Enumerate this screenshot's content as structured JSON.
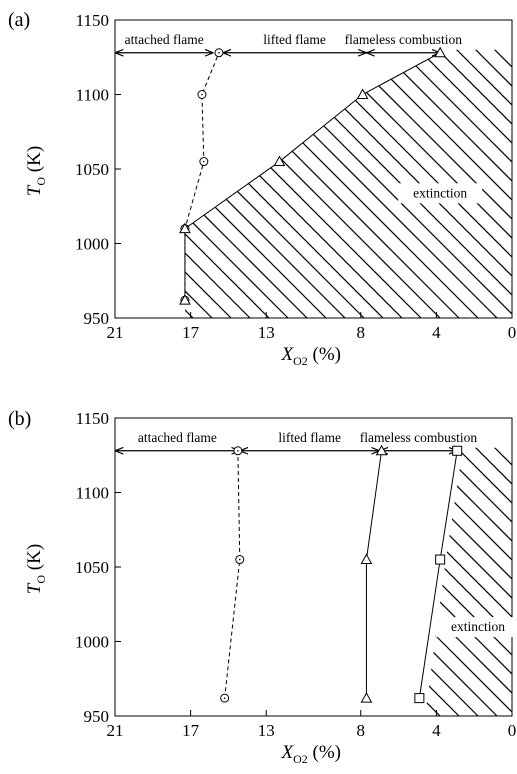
{
  "chart_data": [
    {
      "panel": "(a)",
      "type": "line",
      "xlabel": "X",
      "xlabel_sub": "O2",
      "xlabel_unit": " (%)",
      "ylabel": "T",
      "ylabel_sub": "O",
      "ylabel_unit": " (K)",
      "xlim": [
        21,
        0
      ],
      "ylim": [
        950,
        1150
      ],
      "xticks": [
        21,
        17,
        13,
        8,
        4,
        0
      ],
      "yticks": [
        950,
        1000,
        1050,
        1100,
        1150
      ],
      "grid": false,
      "series": [
        {
          "style": "dashed",
          "marker": "circle",
          "points": [
            [
              17.3,
              962
            ],
            [
              17.3,
              1010
            ],
            [
              16.3,
              1055
            ],
            [
              16.4,
              1100
            ],
            [
              15.5,
              1128
            ]
          ]
        },
        {
          "style": "solid",
          "marker": "triangle",
          "points": [
            [
              17.3,
              962
            ],
            [
              17.3,
              1010
            ],
            [
              12.3,
              1055
            ],
            [
              7.9,
              1100
            ],
            [
              3.8,
              1128
            ]
          ]
        }
      ],
      "hatch_region": [
        [
          17.3,
          950
        ],
        [
          17.3,
          1010
        ],
        [
          12.3,
          1055
        ],
        [
          7.9,
          1100
        ],
        [
          3.8,
          1128
        ],
        [
          3.5,
          1130
        ],
        [
          0,
          1130
        ],
        [
          0,
          950
        ]
      ],
      "regions": [
        {
          "label": "attached flame",
          "x_from": 21,
          "x_to": 15.8
        },
        {
          "label": "lifted flame",
          "x_from": 15.3,
          "x_to": 7.7
        },
        {
          "label": "flameless combustion",
          "x_from": 7.7,
          "x_to": 3.8
        }
      ],
      "annotations": [
        {
          "text": "extinction",
          "x": 3.8,
          "y": 1031
        }
      ]
    },
    {
      "panel": "(b)",
      "type": "line",
      "xlabel": "X",
      "xlabel_sub": "O2",
      "xlabel_unit": " (%)",
      "ylabel": "T",
      "ylabel_sub": "O",
      "ylabel_unit": " (K)",
      "xlim": [
        21,
        0
      ],
      "ylim": [
        950,
        1150
      ],
      "xticks": [
        21,
        17,
        13,
        8,
        4,
        0
      ],
      "yticks": [
        950,
        1000,
        1050,
        1100,
        1150
      ],
      "grid": false,
      "series": [
        {
          "style": "dashed",
          "marker": "circle",
          "points": [
            [
              15.2,
              962
            ],
            [
              14.4,
              1055
            ],
            [
              14.5,
              1128
            ]
          ]
        },
        {
          "style": "solid",
          "marker": "triangle",
          "points": [
            [
              7.7,
              962
            ],
            [
              7.7,
              1055
            ],
            [
              6.9,
              1128
            ]
          ]
        },
        {
          "style": "solid",
          "marker": "square",
          "points": [
            [
              4.9,
              962
            ],
            [
              3.8,
              1055
            ],
            [
              2.9,
              1128
            ]
          ]
        }
      ],
      "hatch_region": [
        [
          4.6,
          950
        ],
        [
          3.5,
          1055
        ],
        [
          2.6,
          1130
        ],
        [
          0,
          1130
        ],
        [
          0,
          950
        ]
      ],
      "regions": [
        {
          "label": "attached flame",
          "x_from": 21,
          "x_to": 14.4
        },
        {
          "label": "lifted flame",
          "x_from": 14.4,
          "x_to": 7.0
        },
        {
          "label": "flameless combustion",
          "x_from": 7.0,
          "x_to": 2.9
        }
      ],
      "annotations": [
        {
          "text": "extinction",
          "x": 1.8,
          "y": 1007
        }
      ]
    }
  ]
}
